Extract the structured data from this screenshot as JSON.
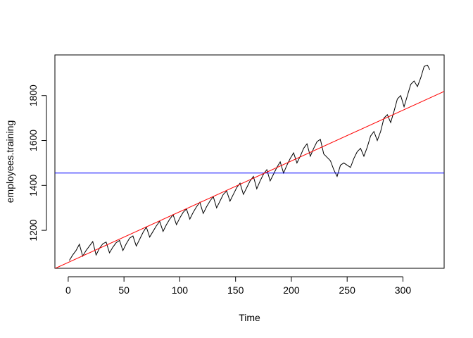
{
  "chart_data": {
    "type": "line",
    "xlabel": "Time",
    "ylabel": "employees.training",
    "x": [
      1,
      4,
      7,
      10,
      13,
      16,
      19,
      22,
      25,
      28,
      31,
      34,
      37,
      40,
      43,
      46,
      49,
      52,
      55,
      58,
      61,
      64,
      67,
      70,
      73,
      76,
      79,
      82,
      85,
      88,
      91,
      94,
      97,
      100,
      103,
      106,
      109,
      112,
      115,
      118,
      121,
      124,
      127,
      130,
      133,
      136,
      139,
      142,
      145,
      148,
      151,
      154,
      157,
      160,
      163,
      166,
      169,
      172,
      175,
      178,
      181,
      184,
      187,
      190,
      193,
      196,
      199,
      202,
      205,
      208,
      211,
      214,
      217,
      220,
      223,
      226,
      229,
      232,
      235,
      238,
      241,
      244,
      247,
      250,
      253,
      256,
      259,
      262,
      265,
      268,
      271,
      274,
      277,
      280,
      283,
      286,
      289,
      292,
      295,
      298,
      301,
      304,
      307,
      310,
      313,
      316,
      319,
      322,
      324
    ],
    "values": [
      1066,
      1090,
      1110,
      1138,
      1085,
      1110,
      1130,
      1150,
      1090,
      1120,
      1140,
      1148,
      1100,
      1125,
      1145,
      1155,
      1110,
      1140,
      1165,
      1175,
      1130,
      1160,
      1190,
      1215,
      1170,
      1195,
      1220,
      1240,
      1195,
      1225,
      1250,
      1270,
      1225,
      1255,
      1280,
      1295,
      1250,
      1280,
      1305,
      1325,
      1275,
      1305,
      1330,
      1350,
      1300,
      1330,
      1360,
      1375,
      1330,
      1360,
      1390,
      1410,
      1360,
      1390,
      1420,
      1440,
      1385,
      1420,
      1450,
      1470,
      1420,
      1450,
      1480,
      1505,
      1455,
      1490,
      1520,
      1545,
      1500,
      1530,
      1565,
      1585,
      1530,
      1565,
      1595,
      1605,
      1540,
      1525,
      1510,
      1470,
      1440,
      1490,
      1500,
      1490,
      1480,
      1520,
      1550,
      1565,
      1530,
      1570,
      1620,
      1640,
      1600,
      1640,
      1700,
      1715,
      1680,
      1730,
      1785,
      1800,
      1750,
      1800,
      1850,
      1865,
      1840,
      1880,
      1930,
      1935,
      1915
    ],
    "color": "#000000",
    "hline": {
      "value": 1455,
      "color": "#0000ff"
    },
    "abline": {
      "intercept": 1057,
      "slope": 2.26,
      "color": "#ff0000"
    },
    "xlim": [
      -11.92,
      336.92
    ],
    "ylim": [
      1031,
      1981
    ],
    "xticks": [
      0,
      50,
      100,
      150,
      200,
      250,
      300
    ],
    "yticks": [
      1200,
      1400,
      1600,
      1800
    ]
  }
}
